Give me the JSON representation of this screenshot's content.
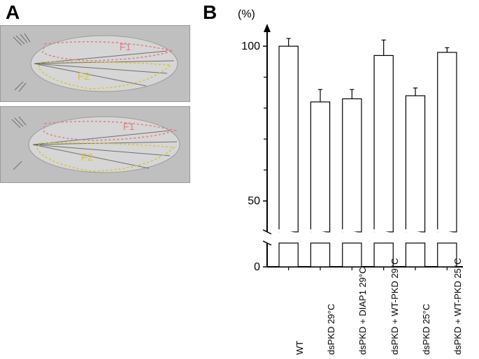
{
  "panelA": {
    "label": "A",
    "images": [
      {
        "f1": "F1",
        "f2": "F2"
      },
      {
        "f1": "F1",
        "f2": "F2"
      }
    ],
    "f1_color": "#e37c7c",
    "f2_color": "#d2c832",
    "img_bg": "#bfbfbf",
    "outline_stroke": "#888888"
  },
  "panelB": {
    "label": "B",
    "yaxis_title": "(%)",
    "chart": {
      "type": "bar",
      "categories": [
        "WT",
        "dsPKD 29°C",
        "dsPKD + DIAP1 29°C",
        "dsPKD + WT-PKD 29°C",
        "dsPKD 25°C",
        "dsPKD + WT-PKD 25°C"
      ],
      "values": [
        100,
        82,
        83,
        97,
        84,
        98
      ],
      "errors": [
        2.5,
        4,
        3,
        5,
        2.5,
        1.5
      ],
      "bar_fill": "#ffffff",
      "bar_stroke": "#000000",
      "bar_stroke_width": 1.2,
      "bar_width": 0.6,
      "ylim_visible_low": 40,
      "ylim_visible_high": 105,
      "break_low": 0,
      "break_high": 40,
      "yticks_main": [
        50,
        100
      ],
      "yticks_minor_step": 10,
      "axis_color": "#000000",
      "axis_width": 2,
      "background_color": "#ffffff",
      "label_fontsize": 13,
      "tick_fontsize": 16,
      "error_cap_width": 6
    }
  }
}
